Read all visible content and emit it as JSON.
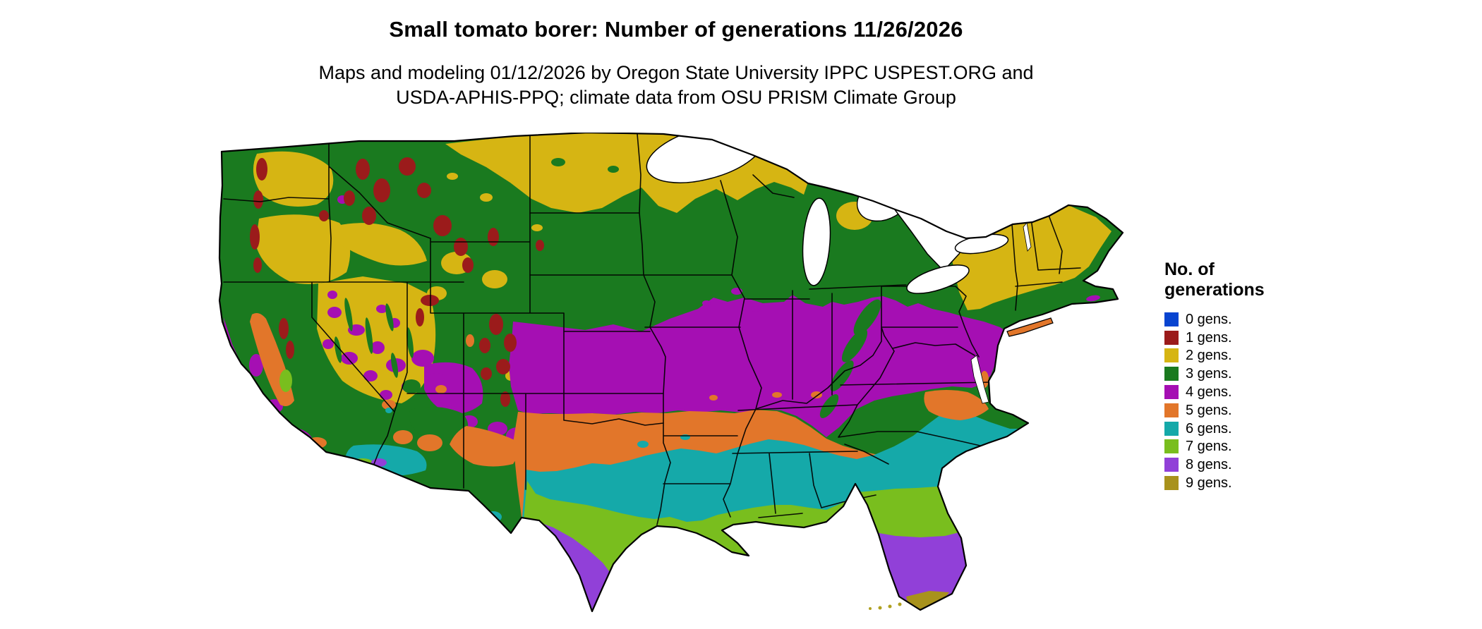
{
  "header": {
    "title": "Small tomato borer: Number of generations 11/26/2026",
    "subtitle_line1": "Maps and modeling 01/12/2026 by Oregon State University IPPC USPEST.ORG and",
    "subtitle_line2": "USDA-APHIS-PPQ; climate data from OSU PRISM Climate Group"
  },
  "legend": {
    "title_line1": "No. of",
    "title_line2": "generations",
    "items": [
      {
        "label": "0 gens.",
        "color": "#0844D0"
      },
      {
        "label": "1 gens.",
        "color": "#9B1B1B"
      },
      {
        "label": "2 gens.",
        "color": "#D6B513"
      },
      {
        "label": "3 gens.",
        "color": "#1A7A1F"
      },
      {
        "label": "4 gens.",
        "color": "#A50FB3"
      },
      {
        "label": "5 gens.",
        "color": "#E2762A"
      },
      {
        "label": "6 gens.",
        "color": "#15A9A9"
      },
      {
        "label": "7 gens.",
        "color": "#79BE1E"
      },
      {
        "label": "8 gens.",
        "color": "#9140D8"
      },
      {
        "label": "9 gens.",
        "color": "#A8921C"
      }
    ]
  },
  "map": {
    "region": "Continental United States"
  }
}
